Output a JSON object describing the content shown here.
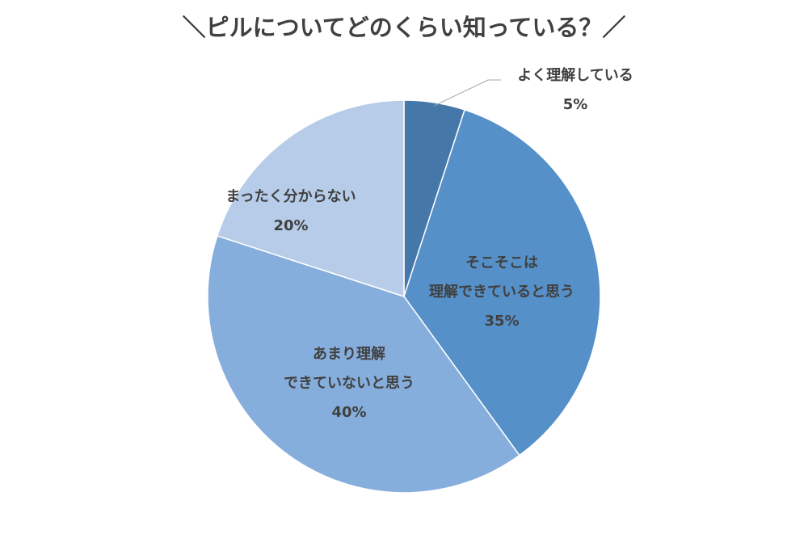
{
  "chart_data": {
    "type": "pie",
    "title": "＼ピルについてどのくらい知っている？／",
    "series": [
      {
        "label_lines": [
          "よく理解している"
        ],
        "value_label": "5%",
        "value": 5,
        "color": "#4577a8"
      },
      {
        "label_lines": [
          "そこそこは",
          "理解できていると思う"
        ],
        "value_label": "35%",
        "value": 35,
        "color": "#5590c8"
      },
      {
        "label_lines": [
          "あまり理解",
          "できていないと思う"
        ],
        "value_label": "40%",
        "value": 40,
        "color": "#86aedc"
      },
      {
        "label_lines": [
          "まったく分からない"
        ],
        "value_label": "20%",
        "value": 20,
        "color": "#b7cce8"
      }
    ]
  }
}
